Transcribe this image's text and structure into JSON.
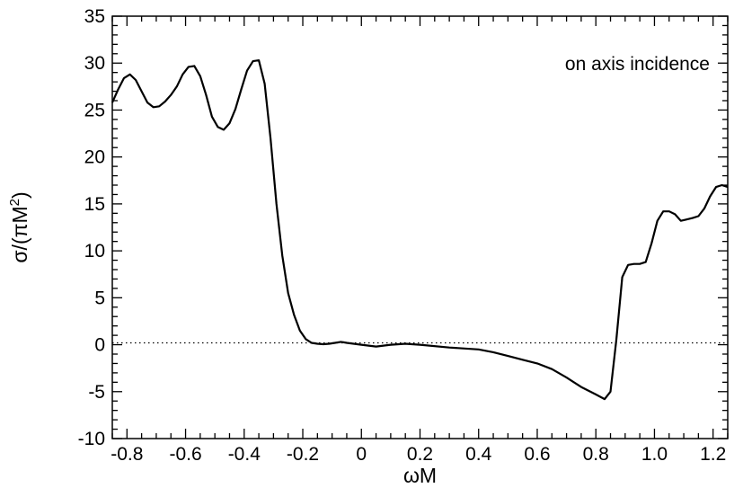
{
  "chart_data": {
    "type": "line",
    "xlabel": "ωM",
    "ylabel_base": "σ/(πM",
    "ylabel_sup": "2",
    "ylabel_close": ")",
    "annotation": "on axis incidence",
    "xlim": [
      -0.85,
      1.25
    ],
    "ylim": [
      -10,
      35
    ],
    "x_ticks": [
      -0.8,
      -0.6,
      -0.4,
      -0.2,
      0,
      0.2,
      0.4,
      0.6,
      0.8,
      1.0,
      1.2
    ],
    "x_tick_labels": [
      "-0.8",
      "-0.6",
      "-0.4",
      "-0.2",
      "0",
      "0.2",
      "0.4",
      "0.6",
      "0.8",
      "1.0",
      "1.2"
    ],
    "y_ticks": [
      -10,
      -5,
      0,
      5,
      10,
      15,
      20,
      25,
      30,
      35
    ],
    "y_tick_labels": [
      "-10",
      "-5",
      "0",
      "5",
      "10",
      "15",
      "20",
      "25",
      "30",
      "35"
    ],
    "reference_line": {
      "y": 0.2,
      "style": "dotted"
    },
    "series": [
      {
        "x": [
          -0.85,
          -0.83,
          -0.81,
          -0.79,
          -0.77,
          -0.75,
          -0.73,
          -0.71,
          -0.69,
          -0.67,
          -0.65,
          -0.63,
          -0.61,
          -0.59,
          -0.57,
          -0.55,
          -0.53,
          -0.51,
          -0.49,
          -0.47,
          -0.45,
          -0.43,
          -0.41,
          -0.39,
          -0.37,
          -0.35,
          -0.33,
          -0.31,
          -0.29,
          -0.27,
          -0.25,
          -0.23,
          -0.21,
          -0.19,
          -0.17,
          -0.15,
          -0.13,
          -0.11,
          -0.09,
          -0.07,
          -0.05,
          0.0,
          0.05,
          0.1,
          0.15,
          0.2,
          0.3,
          0.4,
          0.45,
          0.5,
          0.55,
          0.6,
          0.65,
          0.7,
          0.75,
          0.8,
          0.83,
          0.85,
          0.87,
          0.89,
          0.91,
          0.93,
          0.95,
          0.97,
          0.99,
          1.01,
          1.03,
          1.05,
          1.07,
          1.09,
          1.13,
          1.15,
          1.17,
          1.19,
          1.21,
          1.23,
          1.25
        ],
        "y": [
          25.8,
          27.2,
          28.4,
          28.8,
          28.2,
          27.0,
          25.8,
          25.3,
          25.4,
          25.9,
          26.6,
          27.5,
          28.8,
          29.6,
          29.7,
          28.6,
          26.6,
          24.3,
          23.2,
          22.9,
          23.6,
          25.1,
          27.2,
          29.2,
          30.2,
          30.3,
          27.8,
          22.0,
          15.0,
          9.5,
          5.5,
          3.2,
          1.5,
          0.6,
          0.2,
          0.1,
          0.05,
          0.1,
          0.2,
          0.3,
          0.2,
          0.0,
          -0.2,
          0.0,
          0.1,
          0.0,
          -0.3,
          -0.5,
          -0.8,
          -1.2,
          -1.6,
          -2.0,
          -2.6,
          -3.5,
          -4.5,
          -5.3,
          -5.8,
          -5.0,
          0.5,
          7.2,
          8.5,
          8.6,
          8.6,
          8.8,
          10.8,
          13.2,
          14.2,
          14.2,
          13.9,
          13.2,
          13.5,
          13.7,
          14.5,
          15.8,
          16.8,
          17.0,
          16.8
        ]
      }
    ]
  }
}
